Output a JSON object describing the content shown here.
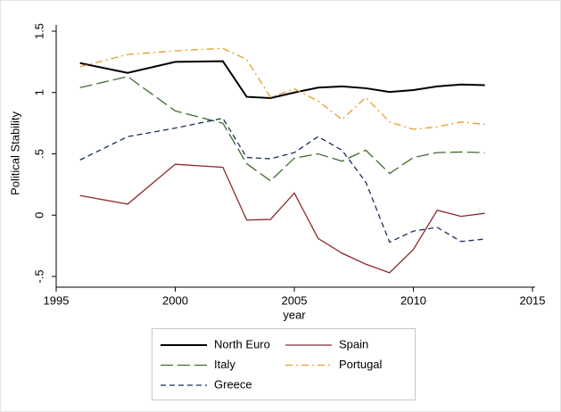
{
  "chart_data": {
    "type": "line",
    "x_label": "year",
    "y_label": "Political Stability",
    "x": [
      1996,
      1998,
      2000,
      2002,
      2003,
      2004,
      2005,
      2006,
      2007,
      2008,
      2009,
      2010,
      2011,
      2012,
      2013
    ],
    "xlim": [
      1995,
      2015
    ],
    "xticks": [
      1995,
      2000,
      2005,
      2010,
      2015
    ],
    "ylim": [
      -0.5,
      1.5
    ],
    "yticks": [
      {
        "value": -0.5,
        "label": "-.5"
      },
      0,
      {
        "value": 0.5,
        "label": ".5"
      },
      1,
      {
        "value": 1.5,
        "label": "1.5"
      }
    ],
    "legend": "bottom",
    "series": [
      {
        "name": "North Euro",
        "color": "#000000",
        "dash": "solid",
        "values": [
          1.24,
          1.16,
          1.25,
          1.255,
          0.965,
          0.955,
          1.0,
          1.04,
          1.05,
          1.035,
          1.005,
          1.02,
          1.05,
          1.065,
          1.06
        ]
      },
      {
        "name": "Spain",
        "color": "#8b2a2a",
        "dash": "solid",
        "values": [
          0.16,
          0.09,
          0.415,
          0.39,
          -0.04,
          -0.035,
          0.18,
          -0.19,
          -0.31,
          -0.4,
          -0.47,
          -0.28,
          0.04,
          -0.01,
          0.015
        ]
      },
      {
        "name": "Italy",
        "color": "#3d6b2a",
        "dash": "longdash",
        "values": [
          1.04,
          1.13,
          0.85,
          0.75,
          0.42,
          0.28,
          0.465,
          0.5,
          0.44,
          0.53,
          0.34,
          0.47,
          0.51,
          0.515,
          0.51
        ]
      },
      {
        "name": "Portugal",
        "color": "#e69a2e",
        "dash": "dashdot",
        "values": [
          1.21,
          1.31,
          1.34,
          1.36,
          1.27,
          0.96,
          1.03,
          0.93,
          0.78,
          0.96,
          0.76,
          0.7,
          0.72,
          0.76,
          0.74
        ]
      },
      {
        "name": "Greece",
        "color": "#1a2d5c",
        "dash": "dash",
        "values": [
          0.45,
          0.64,
          0.71,
          0.79,
          0.47,
          0.46,
          0.51,
          0.64,
          0.53,
          0.27,
          -0.22,
          -0.13,
          -0.1,
          -0.215,
          -0.195
        ]
      }
    ]
  }
}
